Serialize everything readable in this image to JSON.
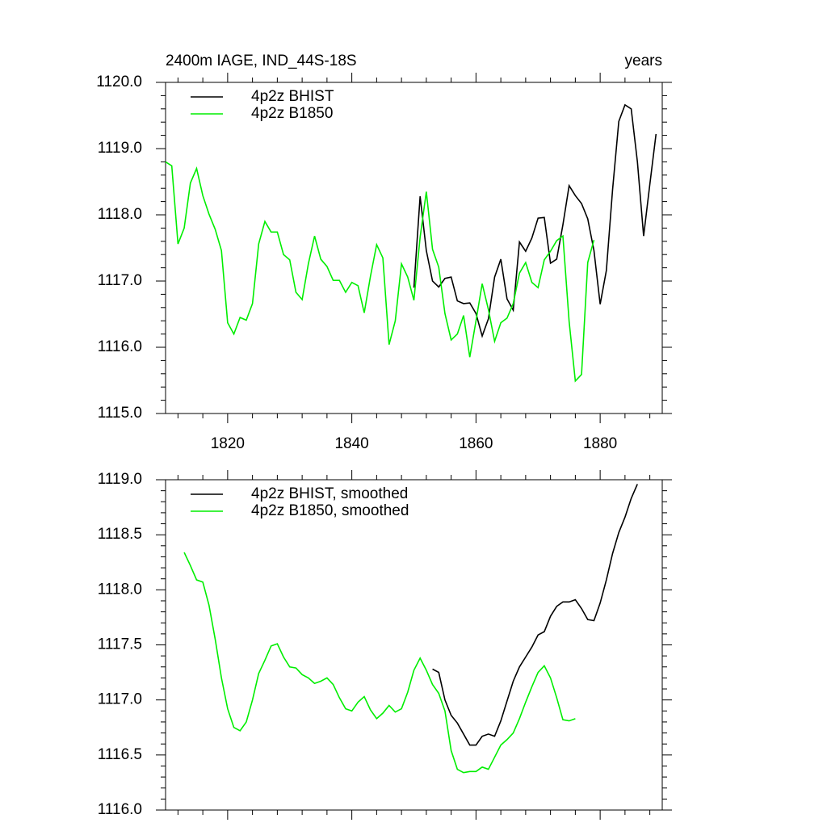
{
  "chart_data": [
    {
      "type": "line",
      "title": "2400m IAGE, IND_44S-18S",
      "right_title": "years",
      "legend": "upper left",
      "xlim": [
        1810,
        1890
      ],
      "xticks": [
        1820,
        1840,
        1860,
        1880
      ],
      "xtick_labels": true,
      "ylim": [
        1115,
        1120
      ],
      "yticks": [
        {
          "value": 1115,
          "label": "1115.0"
        },
        {
          "value": 1116,
          "label": "1116.0"
        },
        {
          "value": 1117,
          "label": "1117.0"
        },
        {
          "value": 1118,
          "label": "1118.0"
        },
        {
          "value": 1119,
          "label": "1119.0"
        },
        {
          "value": 1120,
          "label": "1120.0"
        }
      ],
      "series": [
        {
          "name": "4p2z BHIST",
          "color": "#000000",
          "x": [
            1850,
            1851,
            1852,
            1853,
            1854,
            1855,
            1856,
            1857,
            1858,
            1859,
            1860,
            1861,
            1862,
            1863,
            1864,
            1865,
            1866,
            1867,
            1868,
            1869,
            1870,
            1871,
            1872,
            1873,
            1874,
            1875,
            1876,
            1877,
            1878,
            1879,
            1880,
            1881,
            1882,
            1883,
            1884,
            1885,
            1886,
            1887,
            1888,
            1889
          ],
          "values": [
            1116.9,
            1118.28,
            1117.46,
            1117.0,
            1116.91,
            1117.04,
            1117.06,
            1116.7,
            1116.66,
            1116.67,
            1116.51,
            1116.17,
            1116.43,
            1117.06,
            1117.33,
            1116.73,
            1116.56,
            1117.59,
            1117.45,
            1117.65,
            1117.95,
            1117.96,
            1117.27,
            1117.33,
            1117.85,
            1118.44,
            1118.29,
            1118.17,
            1117.94,
            1117.46,
            1116.65,
            1117.16,
            1118.38,
            1119.41,
            1119.66,
            1119.6,
            1118.8,
            1117.68,
            1118.46,
            1119.22
          ]
        },
        {
          "name": "4p2z B1850",
          "color": "#00ee00",
          "x": [
            1810,
            1811,
            1812,
            1813,
            1814,
            1815,
            1816,
            1817,
            1818,
            1819,
            1820,
            1821,
            1822,
            1823,
            1824,
            1825,
            1826,
            1827,
            1828,
            1829,
            1830,
            1831,
            1832,
            1833,
            1834,
            1835,
            1836,
            1837,
            1838,
            1839,
            1840,
            1841,
            1842,
            1843,
            1844,
            1845,
            1846,
            1847,
            1848,
            1849,
            1850,
            1851,
            1852,
            1853,
            1854,
            1855,
            1856,
            1857,
            1858,
            1859,
            1860,
            1861,
            1862,
            1863,
            1864,
            1865,
            1866,
            1867,
            1868,
            1869,
            1870,
            1871,
            1872,
            1873,
            1874,
            1875,
            1876,
            1877,
            1878,
            1879
          ],
          "values": [
            1118.8,
            1118.74,
            1117.56,
            1117.8,
            1118.48,
            1118.7,
            1118.29,
            1118.01,
            1117.78,
            1117.46,
            1116.37,
            1116.2,
            1116.45,
            1116.41,
            1116.66,
            1117.56,
            1117.9,
            1117.74,
            1117.74,
            1117.4,
            1117.32,
            1116.83,
            1116.72,
            1117.26,
            1117.68,
            1117.33,
            1117.22,
            1117.01,
            1117.01,
            1116.83,
            1116.98,
            1116.93,
            1116.52,
            1117.07,
            1117.55,
            1117.35,
            1116.04,
            1116.4,
            1117.26,
            1117.06,
            1116.71,
            1117.66,
            1118.35,
            1117.48,
            1117.21,
            1116.51,
            1116.11,
            1116.2,
            1116.48,
            1115.85,
            1116.4,
            1116.96,
            1116.57,
            1116.09,
            1116.37,
            1116.44,
            1116.66,
            1117.12,
            1117.28,
            1116.98,
            1116.9,
            1117.32,
            1117.45,
            1117.61,
            1117.68,
            1116.39,
            1115.49,
            1115.59,
            1117.28,
            1117.62
          ]
        }
      ]
    },
    {
      "type": "line",
      "legend": "upper left",
      "xlim": [
        1810,
        1890
      ],
      "xticks": [
        1820,
        1840,
        1860,
        1880
      ],
      "xtick_labels": false,
      "ylim": [
        1116,
        1119
      ],
      "yticks": [
        {
          "value": 1116,
          "label": "1116.0"
        },
        {
          "value": 1116.5,
          "label": "1116.5"
        },
        {
          "value": 1117,
          "label": "1117.0"
        },
        {
          "value": 1117.5,
          "label": "1117.5"
        },
        {
          "value": 1118,
          "label": "1118.0"
        },
        {
          "value": 1118.5,
          "label": "1118.5"
        },
        {
          "value": 1119,
          "label": "1119.0"
        }
      ],
      "series": [
        {
          "name": "4p2z BHIST, smoothed",
          "color": "#000000",
          "x": [
            1853,
            1854,
            1855,
            1856,
            1857,
            1858,
            1859,
            1860,
            1861,
            1862,
            1863,
            1864,
            1865,
            1866,
            1867,
            1868,
            1869,
            1870,
            1871,
            1872,
            1873,
            1874,
            1875,
            1876,
            1877,
            1878,
            1879,
            1880,
            1881,
            1882,
            1883,
            1884,
            1885,
            1886
          ],
          "values": [
            1117.28,
            1117.25,
            1117.0,
            1116.86,
            1116.79,
            1116.69,
            1116.59,
            1116.59,
            1116.67,
            1116.69,
            1116.67,
            1116.81,
            1116.99,
            1117.17,
            1117.3,
            1117.39,
            1117.48,
            1117.59,
            1117.62,
            1117.76,
            1117.85,
            1117.89,
            1117.89,
            1117.91,
            1117.83,
            1117.73,
            1117.72,
            1117.88,
            1118.09,
            1118.33,
            1118.52,
            1118.66,
            1118.83,
            1118.96
          ]
        },
        {
          "name": "4p2z B1850, smoothed",
          "color": "#00ee00",
          "x": [
            1813,
            1814,
            1815,
            1816,
            1817,
            1818,
            1819,
            1820,
            1821,
            1822,
            1823,
            1824,
            1825,
            1826,
            1827,
            1828,
            1829,
            1830,
            1831,
            1832,
            1833,
            1834,
            1835,
            1836,
            1837,
            1838,
            1839,
            1840,
            1841,
            1842,
            1843,
            1844,
            1845,
            1846,
            1847,
            1848,
            1849,
            1850,
            1851,
            1852,
            1853,
            1854,
            1855,
            1856,
            1857,
            1858,
            1859,
            1860,
            1861,
            1862,
            1863,
            1864,
            1865,
            1866,
            1867,
            1868,
            1869,
            1870,
            1871,
            1872,
            1873,
            1874,
            1875,
            1876
          ],
          "values": [
            1118.34,
            1118.22,
            1118.09,
            1118.07,
            1117.86,
            1117.55,
            1117.2,
            1116.92,
            1116.75,
            1116.72,
            1116.8,
            1117.0,
            1117.24,
            1117.36,
            1117.49,
            1117.51,
            1117.39,
            1117.3,
            1117.29,
            1117.23,
            1117.2,
            1117.15,
            1117.17,
            1117.2,
            1117.14,
            1117.02,
            1116.92,
            1116.9,
            1116.98,
            1117.03,
            1116.91,
            1116.83,
            1116.88,
            1116.95,
            1116.89,
            1116.92,
            1117.07,
            1117.27,
            1117.38,
            1117.27,
            1117.14,
            1117.06,
            1116.9,
            1116.54,
            1116.37,
            1116.34,
            1116.35,
            1116.35,
            1116.39,
            1116.37,
            1116.48,
            1116.59,
            1116.64,
            1116.7,
            1116.83,
            1116.98,
            1117.12,
            1117.25,
            1117.31,
            1117.2,
            1117.02,
            1116.82,
            1116.81,
            1116.83
          ]
        }
      ]
    }
  ]
}
